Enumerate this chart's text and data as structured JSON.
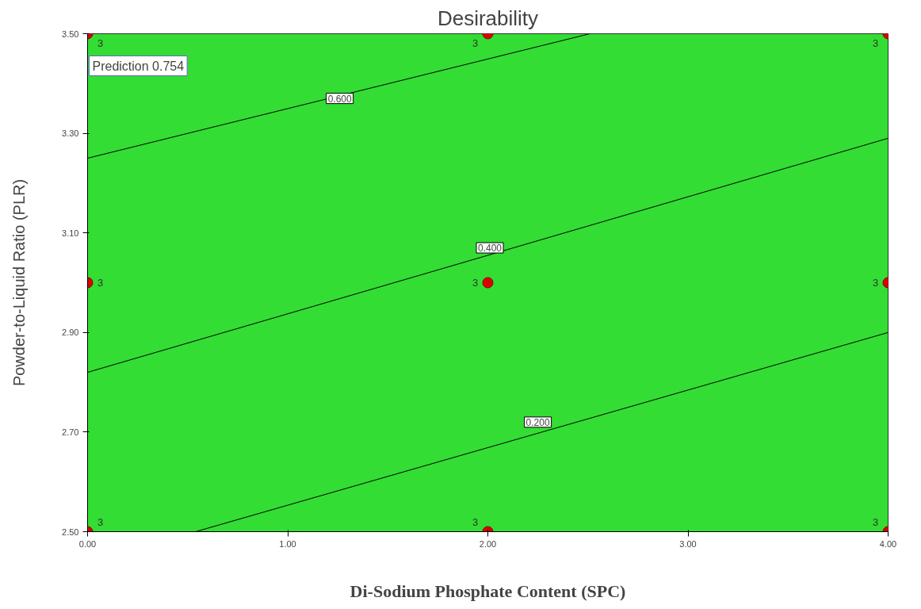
{
  "chart_data": {
    "type": "line",
    "title": "Desirability",
    "xlabel": "Di-Sodium Phosphate Content (SPC)",
    "ylabel": "Powder-to-Liquid Ratio (PLR)",
    "xlim": [
      0,
      4
    ],
    "ylim": [
      2.5,
      3.5
    ],
    "xticks": [
      {
        "value": 0,
        "label": "0.00"
      },
      {
        "value": 1,
        "label": "1.00"
      },
      {
        "value": 2,
        "label": "2.00"
      },
      {
        "value": 3,
        "label": "3.00"
      },
      {
        "value": 4,
        "label": "4.00"
      }
    ],
    "yticks": [
      {
        "value": 2.5,
        "label": "2.50"
      },
      {
        "value": 2.7,
        "label": "2.70"
      },
      {
        "value": 2.9,
        "label": "2.90"
      },
      {
        "value": 3.1,
        "label": "3.10"
      },
      {
        "value": 3.3,
        "label": "3.30"
      },
      {
        "value": 3.5,
        "label": "3.50"
      }
    ],
    "grid": false,
    "series": [
      {
        "color": "#000000",
        "x": [
          0,
          2.51
        ],
        "values": [
          3.25,
          3.5
        ],
        "marker": "none"
      },
      {
        "color": "#000000",
        "x": [
          0,
          4
        ],
        "values": [
          2.82,
          3.29
        ],
        "marker": "none"
      },
      {
        "color": "#000000",
        "x": [
          0.54,
          4
        ],
        "values": [
          2.5,
          2.9
        ],
        "marker": "none"
      },
      {
        "type": "scatter",
        "color": "#dd0000",
        "marker": "circle",
        "x": [
          0,
          0,
          0,
          2,
          2,
          2,
          4,
          4,
          4
        ],
        "values": [
          2.5,
          3,
          3.5,
          2.5,
          3,
          3.5,
          2.5,
          3,
          3.5
        ],
        "value_labels": [
          "3",
          "3",
          "3",
          "3",
          "3",
          "3",
          "3",
          "3",
          "3"
        ]
      }
    ],
    "annotations": [
      {
        "text": "0.600",
        "x": 1.26,
        "y": 3.37
      },
      {
        "text": "0.400",
        "x": 2.01,
        "y": 3.07
      },
      {
        "text": "0.200",
        "x": 2.25,
        "y": 2.72
      },
      {
        "text": "Prediction 0.754",
        "x": 0,
        "y": 3.5
      }
    ]
  }
}
